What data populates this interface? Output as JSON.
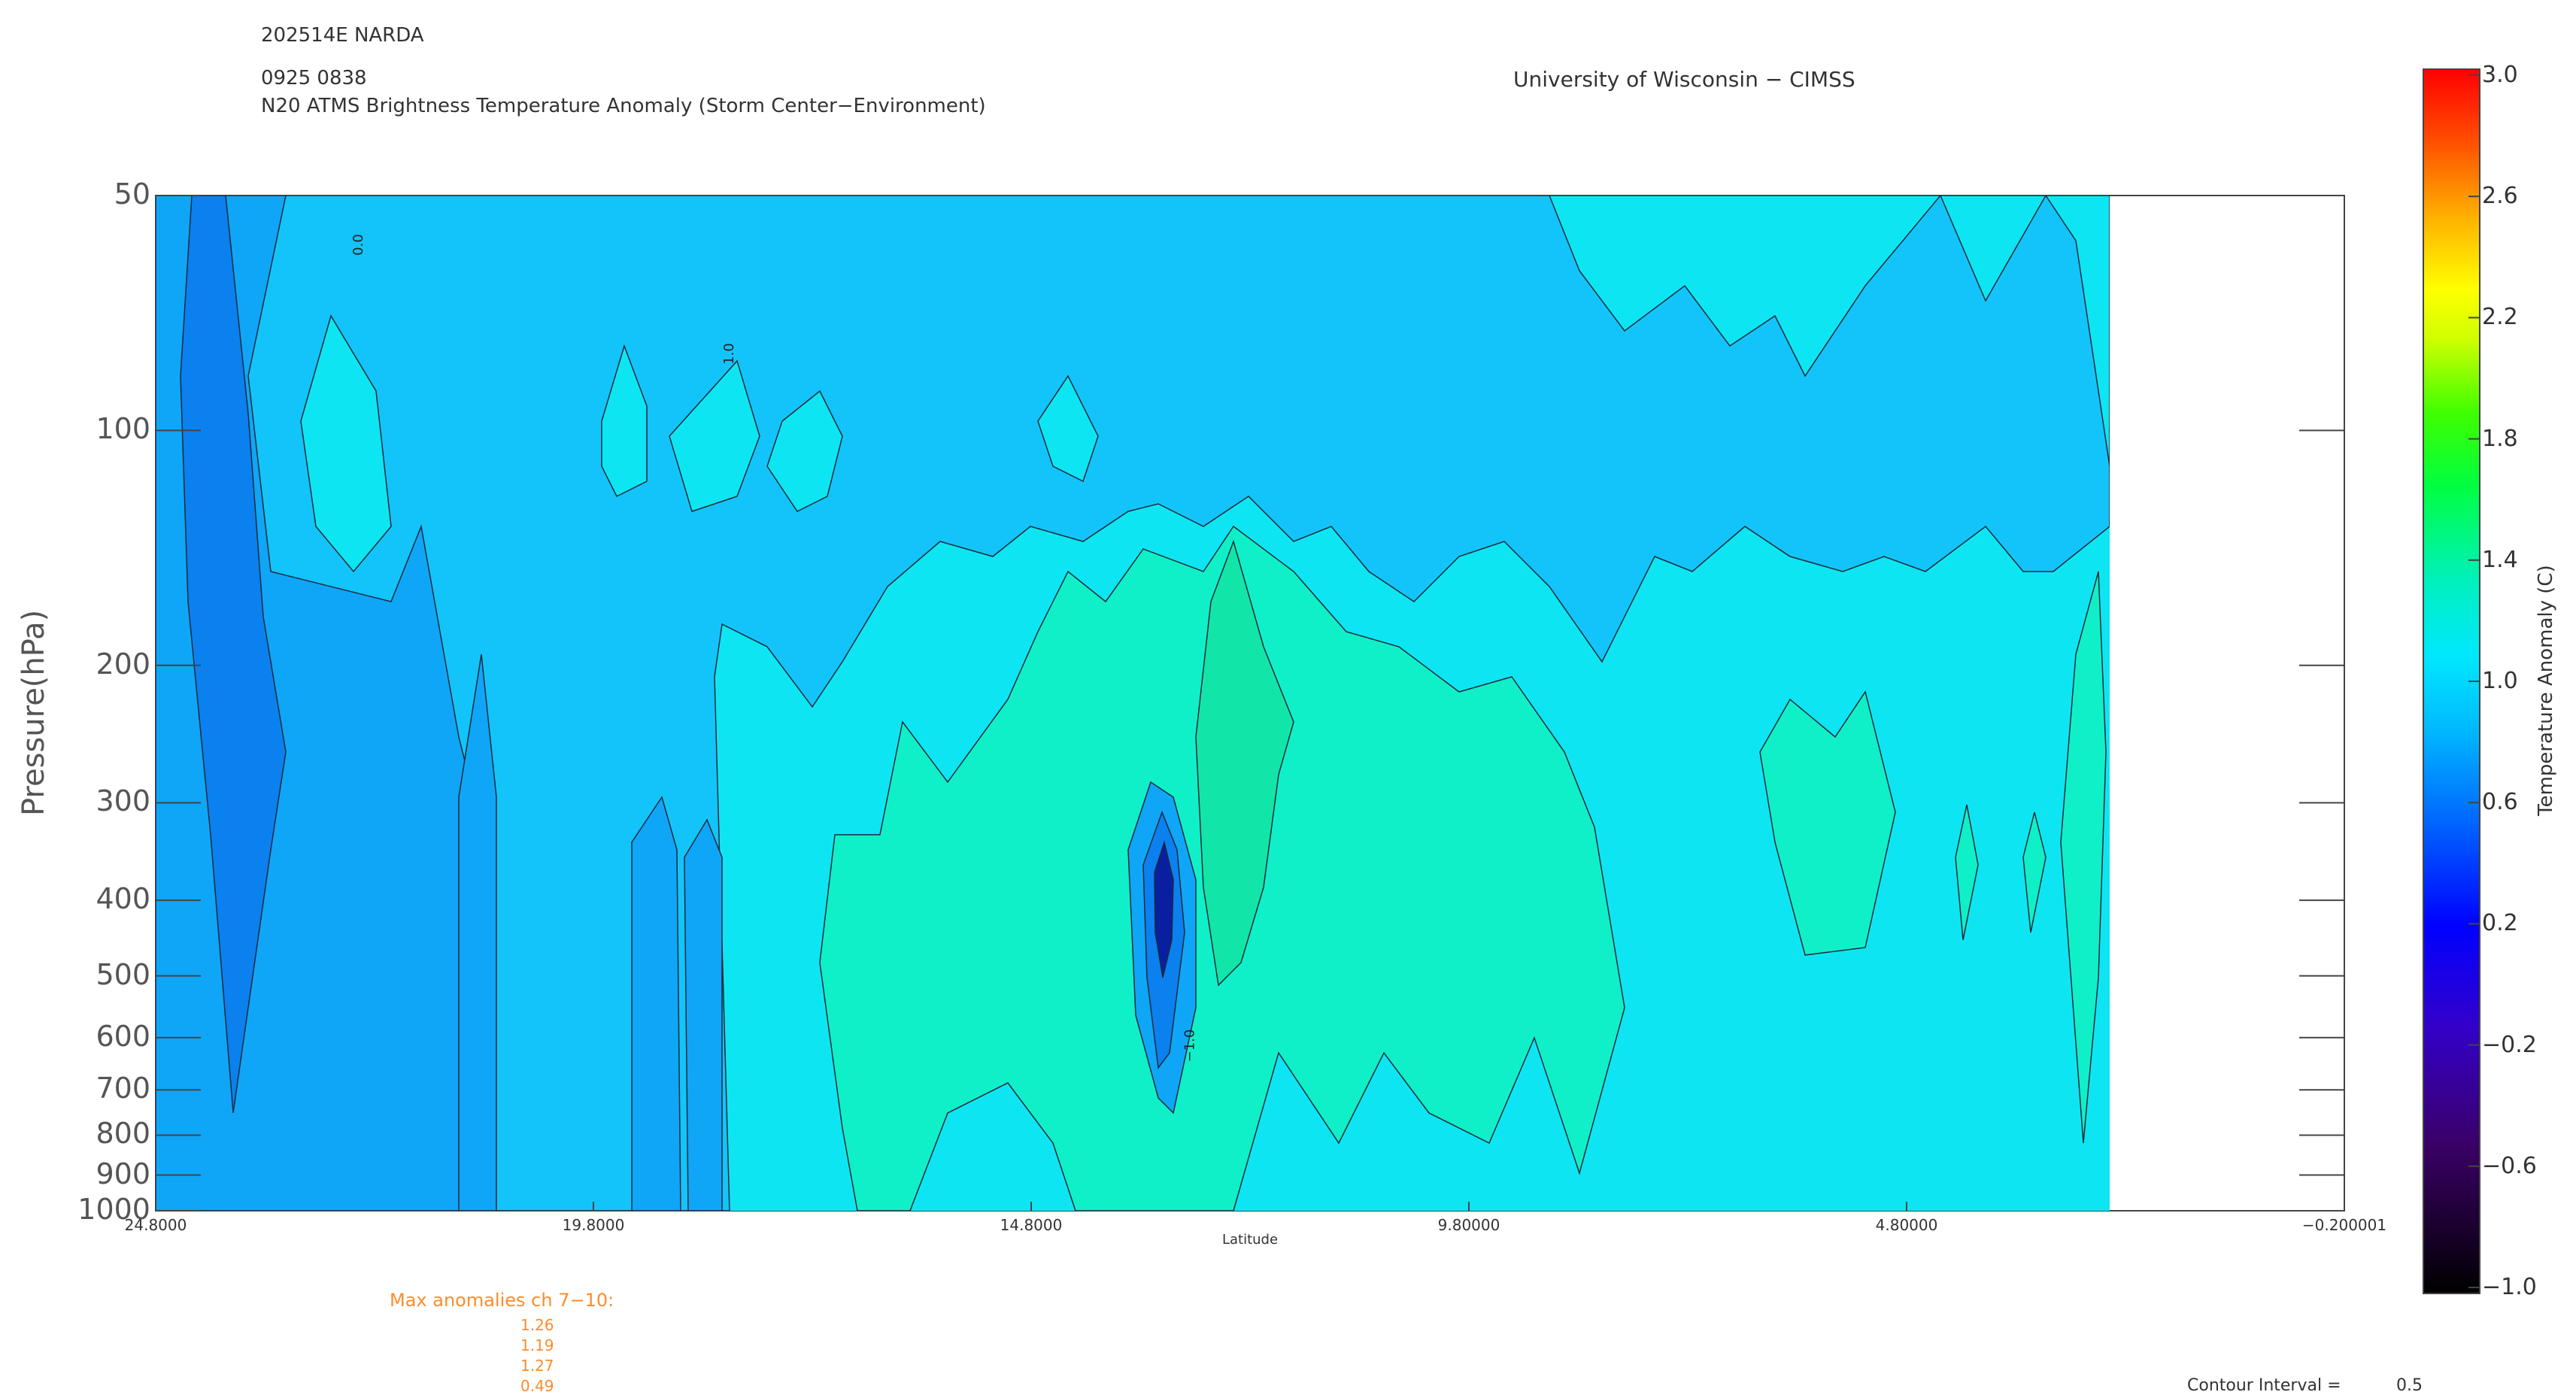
{
  "header": {
    "storm": "202514E NARDA",
    "datetime": "0925 0838",
    "product": "N20 ATMS Brightness Temperature Anomaly (Storm Center−Environment)",
    "institution": "University of Wisconsin − CIMSS"
  },
  "chart_data": {
    "type": "heatmap",
    "title": "N20 ATMS Brightness Temperature Anomaly (Storm Center−Environment)",
    "xlabel": "Latitude",
    "ylabel": "Pressure(hPa)",
    "x_ticks": [
      "24.8000",
      "19.8000",
      "14.8000",
      "9.80000",
      "4.80000",
      "−0.200001"
    ],
    "x_range": [
      24.8,
      -0.2
    ],
    "data_extent_x": [
      24.8,
      2.6
    ],
    "y_ticks": [
      "50",
      "100",
      "200",
      "300",
      "400",
      "500",
      "600",
      "700",
      "800",
      "900",
      "1000"
    ],
    "y_range": [
      1000,
      50
    ],
    "y_scale": "log",
    "contour_interval_label": "Contour Interval =",
    "contour_interval": "0.5",
    "contour_labels": [
      "0.0",
      "1.0",
      "−1.0"
    ],
    "colorbar": {
      "label": "Temperature Anomaly (C)",
      "ticks": [
        "3.0",
        "2.6",
        "2.2",
        "1.8",
        "1.4",
        "1.0",
        "0.6",
        "0.2",
        "−0.2",
        "−0.6",
        "−1.0"
      ],
      "range": [
        -1.0,
        3.0
      ]
    },
    "fill_colors": {
      "dark_core": "#0a1fa0",
      "deep_blue": "#0b80ef",
      "mid_blue": "#0fa6f7",
      "light_blue": "#13c4fa",
      "cyan": "#0de6f2",
      "aqua_green": "#10f0c8",
      "green": "#11e6a8"
    },
    "max_anomalies": {
      "title": "Max anomalies ch 7−10:",
      "values": [
        "1.26",
        "1.19",
        "1.27",
        "0.49"
      ]
    }
  }
}
